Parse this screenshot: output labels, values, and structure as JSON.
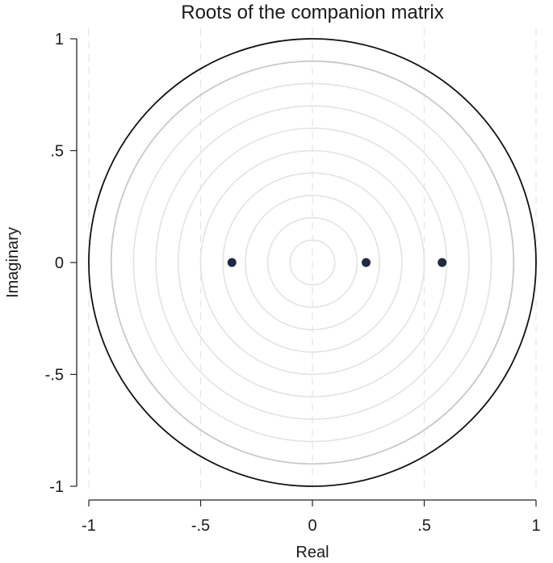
{
  "chart_data": {
    "type": "scatter",
    "title": "Roots of the companion matrix",
    "xlabel": "Real",
    "ylabel": "Imaginary",
    "xlim": [
      -1,
      1
    ],
    "ylim": [
      -1,
      1
    ],
    "x_ticks": [
      {
        "value": -1,
        "label": "-1"
      },
      {
        "value": -0.5,
        "label": "-.5"
      },
      {
        "value": 0,
        "label": "0"
      },
      {
        "value": 0.5,
        "label": ".5"
      },
      {
        "value": 1,
        "label": "1"
      }
    ],
    "y_ticks": [
      {
        "value": -1,
        "label": "-1"
      },
      {
        "value": -0.5,
        "label": "-.5"
      },
      {
        "value": 0,
        "label": "0"
      },
      {
        "value": 0.5,
        "label": ".5"
      },
      {
        "value": 1,
        "label": "1"
      }
    ],
    "unit_circle_radius": 1,
    "reference_circle_radii": [
      0.1,
      0.2,
      0.3,
      0.4,
      0.5,
      0.6,
      0.7,
      0.8,
      0.9
    ],
    "vertical_gridlines_dashed": true,
    "points": [
      {
        "x": -0.36,
        "y": 0
      },
      {
        "x": 0.24,
        "y": 0
      },
      {
        "x": 0.58,
        "y": 0
      }
    ],
    "colors": {
      "points": "#1f2a44",
      "unit_circle": "#111111",
      "reference_circle": "#e3e3e3",
      "reference_circle_outer": "#c8c8c8",
      "gridline": "#e6e6e6",
      "axis": "#222222"
    }
  }
}
